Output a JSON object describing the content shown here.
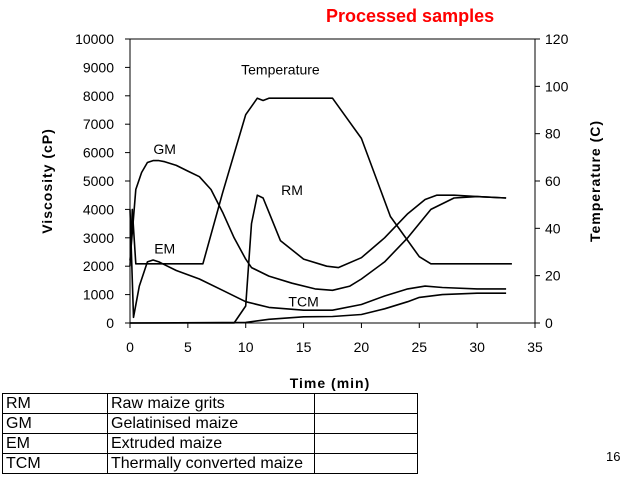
{
  "slide": {
    "title": "Processed samples",
    "page_number": "16"
  },
  "legend_table": [
    {
      "abbr": "RM",
      "name": "Raw maize grits",
      "extra": ""
    },
    {
      "abbr": "GM",
      "name": "Gelatinised maize",
      "extra": ""
    },
    {
      "abbr": "EM",
      "name": "Extruded maize",
      "extra": ""
    },
    {
      "abbr": "TCM",
      "name": "Thermally converted maize",
      "extra": ""
    }
  ],
  "chart_data": {
    "type": "line",
    "xlabel": "Time (min)",
    "ylabel": "Viscosity (cP)",
    "y2label": "Temperature (C)",
    "xlim": [
      0,
      35
    ],
    "ylim": [
      0,
      10000
    ],
    "y2lim": [
      0,
      120
    ],
    "xticks": [
      0,
      5,
      10,
      15,
      20,
      25,
      30,
      35
    ],
    "yticks": [
      0,
      1000,
      2000,
      3000,
      4000,
      5000,
      6000,
      7000,
      8000,
      9000,
      10000
    ],
    "y2ticks": [
      0,
      20,
      40,
      60,
      80,
      100,
      120
    ],
    "grid": false,
    "series": [
      {
        "name": "Temperature",
        "axis": "right",
        "x": [
          0,
          0.2,
          0.5,
          6.3,
          8,
          10,
          11,
          11.5,
          12,
          17.5,
          20,
          22.5,
          25,
          26,
          33
        ],
        "y": [
          24,
          48,
          25,
          25,
          55,
          88,
          95,
          94,
          95,
          95,
          78,
          45,
          28,
          25,
          25
        ]
      },
      {
        "name": "GM",
        "axis": "left",
        "x": [
          0,
          0.5,
          1,
          1.5,
          2,
          2.5,
          3,
          4,
          5,
          6,
          7,
          8,
          9,
          10,
          10.5,
          12,
          14,
          16,
          17.5,
          19,
          20,
          22,
          24,
          26,
          28,
          30,
          32.5
        ],
        "y": [
          2200,
          4700,
          5300,
          5650,
          5720,
          5720,
          5680,
          5550,
          5350,
          5150,
          4700,
          3900,
          3000,
          2250,
          1950,
          1650,
          1400,
          1200,
          1150,
          1300,
          1550,
          2150,
          3000,
          4000,
          4400,
          4450,
          4400
        ]
      },
      {
        "name": "EM",
        "axis": "left",
        "x": [
          0,
          0.3,
          0.8,
          1.5,
          2,
          2.5,
          3,
          4,
          6,
          8,
          10,
          12,
          15,
          17.5,
          20,
          22,
          24,
          25.5,
          27,
          30,
          32.5
        ],
        "y": [
          4000,
          200,
          1300,
          2150,
          2220,
          2150,
          2050,
          1850,
          1550,
          1150,
          750,
          550,
          450,
          450,
          650,
          950,
          1200,
          1300,
          1250,
          1200,
          1200
        ]
      },
      {
        "name": "RM",
        "axis": "left",
        "x": [
          0,
          9,
          10,
          10.5,
          11,
          11.5,
          12,
          13,
          15,
          17,
          18,
          20,
          22,
          24,
          25.5,
          26.5,
          28,
          30,
          32.5
        ],
        "y": [
          0,
          0,
          600,
          3500,
          4500,
          4400,
          3900,
          2900,
          2250,
          2000,
          1950,
          2300,
          3000,
          3850,
          4350,
          4500,
          4500,
          4450,
          4400
        ]
      },
      {
        "name": "TCM",
        "axis": "left",
        "x": [
          0,
          10,
          12,
          15,
          17.5,
          20,
          22,
          24,
          25,
          27,
          30,
          32.5
        ],
        "y": [
          0,
          20,
          130,
          220,
          230,
          300,
          500,
          750,
          900,
          1000,
          1050,
          1050
        ]
      }
    ],
    "series_labels": [
      "Temperature",
      "GM",
      "EM",
      "RM",
      "TCM"
    ]
  }
}
